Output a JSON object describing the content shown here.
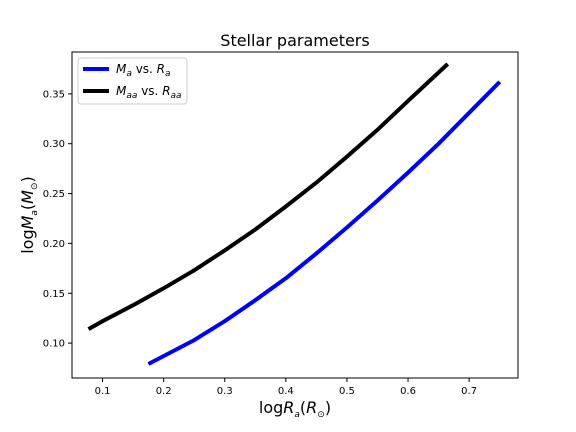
{
  "chart_data": {
    "type": "line",
    "title": "Stellar parameters",
    "xlabel": {
      "prefix": "log",
      "var": "R",
      "sub": "a",
      "unit_open": "(",
      "unit_var": "R",
      "unit_sub": "⊙",
      "unit_close": ")"
    },
    "ylabel": {
      "prefix": "log",
      "var": "M",
      "sub": "a",
      "unit_open": "(",
      "unit_var": "M",
      "unit_sub": "⊙",
      "unit_close": ")"
    },
    "xlim": [
      0.05,
      0.78
    ],
    "ylim": [
      0.065,
      0.392
    ],
    "xticks": [
      0.1,
      0.2,
      0.3,
      0.4,
      0.5,
      0.6,
      0.7
    ],
    "yticks": [
      0.1,
      0.15,
      0.2,
      0.25,
      0.3,
      0.35
    ],
    "xtick_labels": [
      "0.1",
      "0.2",
      "0.3",
      "0.4",
      "0.5",
      "0.6",
      "0.7"
    ],
    "ytick_labels": [
      "0.10",
      "0.15",
      "0.20",
      "0.25",
      "0.30",
      "0.35"
    ],
    "grid": false,
    "legend": "top-left",
    "series": [
      {
        "name": "Ma vs. Ra",
        "legend": {
          "v1": "M",
          "s1": "a",
          "mid": " vs. ",
          "v2": "R",
          "s2": "a"
        },
        "color": "#0000ff",
        "x": [
          0.175,
          0.25,
          0.3,
          0.35,
          0.4,
          0.45,
          0.5,
          0.55,
          0.6,
          0.65,
          0.7,
          0.75
        ],
        "y": [
          0.079,
          0.103,
          0.122,
          0.143,
          0.165,
          0.19,
          0.216,
          0.243,
          0.271,
          0.3,
          0.331,
          0.362
        ]
      },
      {
        "name": "Maa vs. Raa",
        "legend": {
          "v1": "M",
          "s1": "aa",
          "mid": " vs. ",
          "v2": "R",
          "s2": "aa"
        },
        "color": "#000000",
        "x": [
          0.077,
          0.1,
          0.15,
          0.2,
          0.25,
          0.3,
          0.35,
          0.4,
          0.45,
          0.5,
          0.55,
          0.6,
          0.665
        ],
        "y": [
          0.114,
          0.122,
          0.138,
          0.155,
          0.173,
          0.193,
          0.214,
          0.237,
          0.261,
          0.287,
          0.314,
          0.343,
          0.38
        ]
      }
    ]
  }
}
